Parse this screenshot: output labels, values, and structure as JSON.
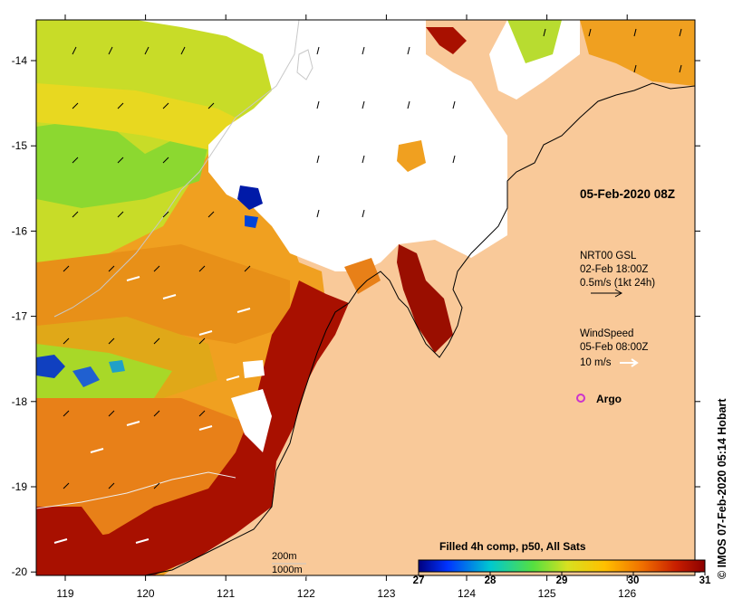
{
  "map": {
    "date_label": "05-Feb-2020 08Z",
    "x_ticks": [
      "119",
      "120",
      "121",
      "122",
      "123",
      "124",
      "125",
      "126"
    ],
    "y_ticks": [
      "-14",
      "-15",
      "-16",
      "-17",
      "-18",
      "-19",
      "-20"
    ],
    "land_color": "#f9c999",
    "credit": "© IMOS 07-Feb-2020 05:14 Hobart"
  },
  "current_legend": {
    "line1": "NRT00 GSL",
    "line2": "02-Feb 18:00Z",
    "line3": "0.5m/s (1kt 24h)"
  },
  "wind_legend": {
    "line1": "WindSpeed",
    "line2": "05-Feb 08:00Z",
    "line3": "10 m/s"
  },
  "argo": {
    "label": "Argo",
    "color": "#cc33cc"
  },
  "depth_legend": {
    "contour1": "200m",
    "contour2": "1000m"
  },
  "colorbar": {
    "title": "Filled 4h comp, p50, All Sats",
    "ticks": [
      "27",
      "28",
      "29",
      "30",
      "31"
    ],
    "min": 27,
    "max": 31,
    "colors": [
      "#00007f",
      "#0055ff",
      "#00c8d0",
      "#55e040",
      "#d8e020",
      "#ffc000",
      "#f07000",
      "#d02000",
      "#8b0000"
    ]
  }
}
